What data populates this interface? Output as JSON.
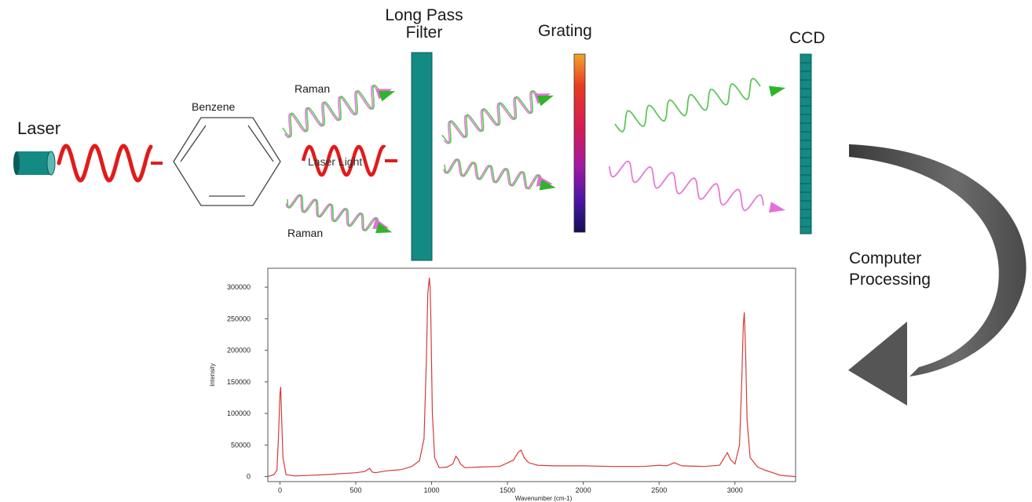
{
  "labels": {
    "laser": "Laser",
    "benzene": "Benzene",
    "raman_top": "Raman",
    "raman_bottom": "Raman",
    "laser_light": "Laser Light",
    "filter_line1": "Long Pass",
    "filter_line2": "Filter",
    "grating": "Grating",
    "ccd": "CCD",
    "computer_line1": "Computer",
    "computer_line2": "Processing"
  },
  "colors": {
    "laser": "#e11b1b",
    "raman_green": "#5cc85a",
    "raman_pink": "#e57ad6",
    "arrow_green": "#2fb52a",
    "arrow_pink": "#e46fd7",
    "teal": "#138a84",
    "teal_dark": "#0b5d59",
    "spectrum": "#d63a3a",
    "curved_arrow": "#555555"
  },
  "icons": [
    "laser-cylinder-icon",
    "benzene-ring-icon",
    "curved-arrow-icon"
  ],
  "chart_data": {
    "type": "line",
    "xlabel": "Wavenumber (cm-1)",
    "ylabel": "Intensity",
    "xlim": [
      -80,
      3400
    ],
    "ylim": [
      -8000,
      330000
    ],
    "xticks": [
      0,
      500,
      1000,
      1500,
      2000,
      2500,
      3000
    ],
    "yticks": [
      0,
      50000,
      100000,
      150000,
      200000,
      250000,
      300000
    ],
    "grid": false,
    "series": [
      {
        "x": [
          -80,
          -40,
          -20,
          -10,
          0,
          5,
          10,
          20,
          40,
          100,
          300,
          500,
          560,
          590,
          610,
          630,
          700,
          800,
          870,
          920,
          950,
          965,
          975,
          985,
          990,
          995,
          1005,
          1020,
          1050,
          1100,
          1140,
          1160,
          1175,
          1190,
          1220,
          1300,
          1450,
          1540,
          1570,
          1590,
          1610,
          1640,
          1700,
          1800,
          2000,
          2200,
          2400,
          2500,
          2550,
          2600,
          2620,
          2650,
          2800,
          2900,
          2930,
          2950,
          2970,
          3000,
          3030,
          3045,
          3055,
          3062,
          3070,
          3080,
          3100,
          3150,
          3200,
          3250,
          3300,
          3400
        ],
        "y": [
          0,
          3000,
          10000,
          60000,
          130000,
          142000,
          100000,
          30000,
          3000,
          1000,
          3000,
          6000,
          8000,
          13000,
          7000,
          6000,
          9000,
          11000,
          16000,
          25000,
          60000,
          180000,
          290000,
          315000,
          300000,
          250000,
          100000,
          30000,
          14000,
          15000,
          20000,
          32000,
          28000,
          20000,
          14000,
          15000,
          16000,
          26000,
          38000,
          42000,
          30000,
          22000,
          18000,
          17000,
          17000,
          16000,
          16000,
          18000,
          17000,
          22000,
          20000,
          17000,
          16000,
          18000,
          30000,
          38000,
          27000,
          20000,
          50000,
          150000,
          240000,
          260000,
          200000,
          90000,
          30000,
          15000,
          10000,
          6000,
          2000,
          0
        ]
      }
    ]
  }
}
